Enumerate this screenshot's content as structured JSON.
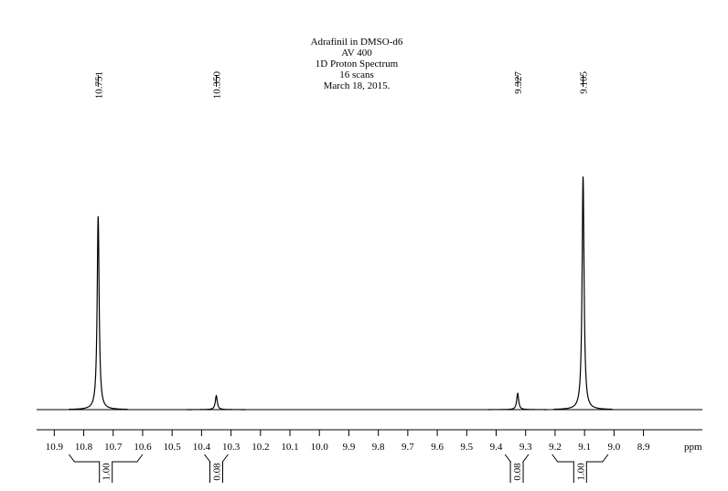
{
  "chart_data": {
    "type": "nmr",
    "title_lines": [
      "Adrafinil in DMSO-d6",
      "AV 400",
      "1D Proton Spectrum",
      "16 scans",
      "March 18, 2015."
    ],
    "x_label": "ppm",
    "xlim": [
      10.96,
      8.7
    ],
    "ylim": [
      0,
      1
    ],
    "xticks": [
      10.9,
      10.8,
      10.7,
      10.6,
      10.5,
      10.4,
      10.3,
      10.2,
      10.1,
      {
        "value": 10,
        "label": "10.0"
      },
      9.9,
      9.8,
      9.7,
      9.6,
      9.5,
      9.4,
      9.3,
      9.2,
      9.1,
      {
        "value": 9,
        "label": "9.0"
      },
      8.9
    ],
    "peak_labels": [
      10.751,
      {
        "value": 10.35,
        "label": "10.350"
      },
      9.327,
      9.105
    ],
    "peak_heights": [
      0.83,
      0.06,
      0.07,
      1.0
    ],
    "integral_values": [
      1,
      0.08,
      0.08,
      1
    ],
    "integral_labels": [
      "1.00",
      "0.08",
      "0.08",
      "1.00"
    ],
    "integral_ranges": [
      [
        10.85,
        10.6
      ],
      [
        10.39,
        10.31
      ],
      [
        9.37,
        9.29
      ],
      [
        9.21,
        9.02
      ]
    ],
    "color": "#000000"
  }
}
